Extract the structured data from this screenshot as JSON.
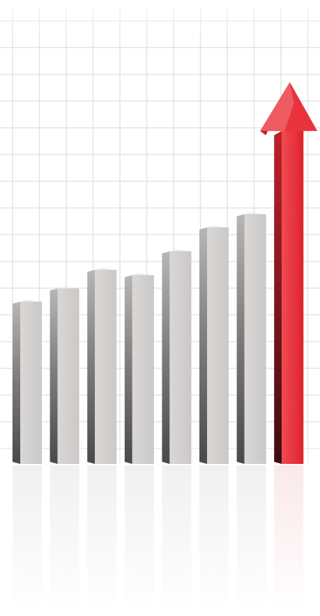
{
  "chart_data": {
    "type": "bar",
    "categories": [
      null,
      null,
      null,
      null,
      null,
      null,
      null,
      null
    ],
    "values": [
      6.2,
      6.7,
      7.4,
      7.2,
      8.1,
      9.0,
      9.5,
      14.4
    ],
    "colors": [
      "#cfcdcb",
      "#cfcdcb",
      "#cfcdcb",
      "#cfcdcb",
      "#cfcdcb",
      "#cfcdcb",
      "#cfcdcb",
      "#e8333c"
    ],
    "grid": true
  }
}
